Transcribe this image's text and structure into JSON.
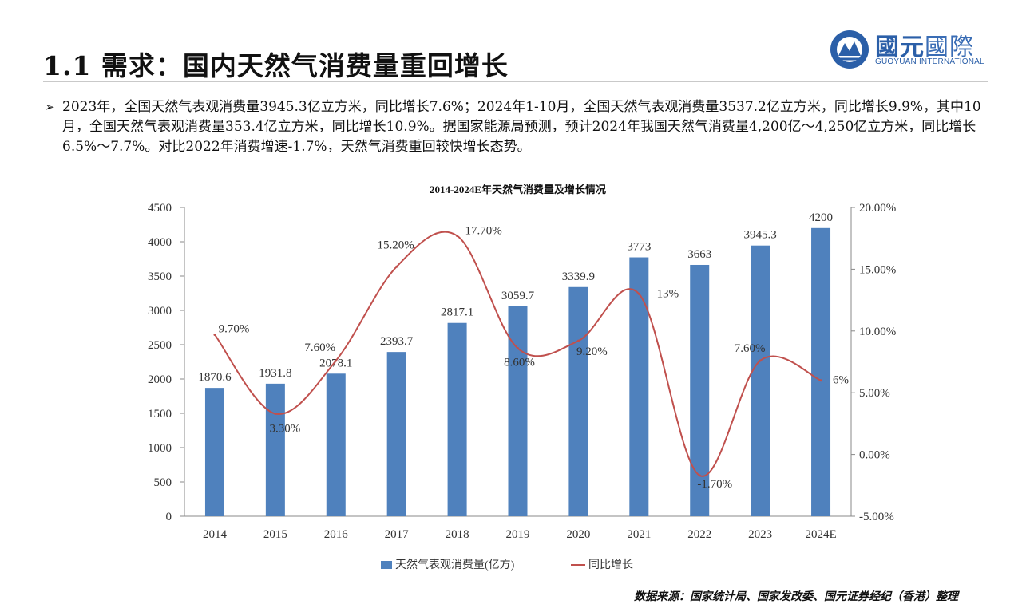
{
  "header": {
    "title": "1.1 需求：国内天然气消费量重回增长",
    "logo": {
      "name_cn_bold": "國元",
      "name_cn_light": "國際",
      "name_en": "GUOYUAN INTERNATIONAL",
      "brand_color": "#2b5fa8"
    }
  },
  "bullet": {
    "marker": "➢",
    "text": "2023年，全国天然气表观消费量3945.3亿立方米，同比增长7.6%；2024年1-10月，全国天然气表观消费量3537.2亿立方米，同比增长9.9%，其中10月，全国天然气表观消费量353.4亿立方米，同比增长10.9%。据国家能源局预测，预计2024年我国天然气消费量4,200亿～4,250亿立方米，同比增长6.5%～7.7%。对比2022年消费增速-1.7%，天然气消费重回较快增长态势。"
  },
  "chart_data": {
    "type": "bar",
    "title": "2014-2024E年天然气消费量及增长情况",
    "categories": [
      "2014",
      "2015",
      "2016",
      "2017",
      "2018",
      "2019",
      "2020",
      "2021",
      "2022",
      "2023",
      "2024E"
    ],
    "series": [
      {
        "name": "天然气表观消费量(亿方)",
        "type": "bar",
        "axis": "left",
        "color": "#4f81bd",
        "values": [
          1870.6,
          1931.8,
          2078.1,
          2393.7,
          2817.1,
          3059.7,
          3339.9,
          3773,
          3663,
          3945.3,
          4200
        ],
        "labels": [
          "1870.6",
          "1931.8",
          "2078.1",
          "2393.7",
          "2817.1",
          "3059.7",
          "3339.9",
          "3773",
          "3663",
          "3945.3",
          "4200"
        ]
      },
      {
        "name": "同比增长",
        "type": "line",
        "smooth": true,
        "axis": "right",
        "color": "#c0504d",
        "values": [
          9.7,
          3.3,
          7.6,
          15.2,
          17.7,
          8.6,
          9.2,
          13,
          -1.7,
          7.6,
          6
        ],
        "labels": [
          "9.70%",
          "3.30%",
          "7.60%",
          "15.20%",
          "17.70%",
          "8.60%",
          "9.20%",
          "13%",
          "-1.70%",
          "7.60%",
          "6%"
        ]
      }
    ],
    "y_left": {
      "min": 0,
      "max": 4500,
      "ticks": [
        "0",
        "500",
        "1000",
        "1500",
        "2000",
        "2500",
        "3000",
        "3500",
        "4000",
        "4500"
      ]
    },
    "y_right": {
      "min": -5,
      "max": 20,
      "ticks": [
        "-5.00%",
        "0.00%",
        "5.00%",
        "10.00%",
        "15.00%",
        "20.00%"
      ]
    },
    "grid": false,
    "legend": "bottom"
  },
  "footer": {
    "source": "数据来源：国家统计局、国家发改委、国元证券经纪（香港）整理"
  }
}
